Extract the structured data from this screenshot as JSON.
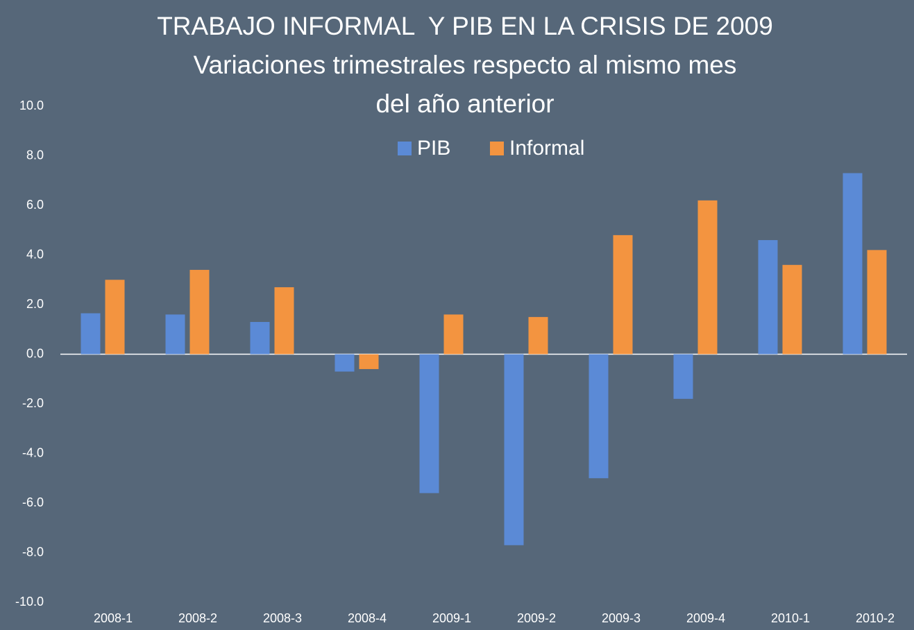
{
  "chart_data": {
    "type": "bar",
    "title": "TRABAJO INFORMAL  Y PIB EN LA CRISIS DE 2009",
    "subtitle": "Variaciones trimestrales respecto al mismo mes del año anterior",
    "categories": [
      "2008-1",
      "2008-2",
      "2008-3",
      "2008-4",
      "2009-1",
      "2009-2",
      "2009-3",
      "2009-4",
      "2010-1",
      "2010-2"
    ],
    "series": [
      {
        "name": "PIB",
        "color": "#5b8ad6",
        "values": [
          1.65,
          1.6,
          1.3,
          -0.7,
          -5.6,
          -7.7,
          -5.0,
          -1.8,
          4.6,
          7.3
        ]
      },
      {
        "name": "Informal",
        "color": "#f39440",
        "values": [
          3.0,
          3.4,
          2.7,
          -0.6,
          1.6,
          1.5,
          4.8,
          6.2,
          3.6,
          4.2
        ]
      }
    ],
    "ylim": [
      -10,
      10
    ],
    "yticks": [
      {
        "value": -10,
        "label": "-10.0"
      },
      {
        "value": -8,
        "label": "-8.0"
      },
      {
        "value": -6,
        "label": "-6.0"
      },
      {
        "value": -4,
        "label": "-4.0"
      },
      {
        "value": -2,
        "label": "-2.0"
      },
      {
        "value": 0,
        "label": "0.0"
      },
      {
        "value": 2,
        "label": "2.0"
      },
      {
        "value": 4,
        "label": "4.0"
      },
      {
        "value": 6,
        "label": "6.0"
      },
      {
        "value": 8,
        "label": "8.0"
      },
      {
        "value": 10,
        "label": "10.0"
      }
    ],
    "grid": false,
    "legend": "top"
  }
}
